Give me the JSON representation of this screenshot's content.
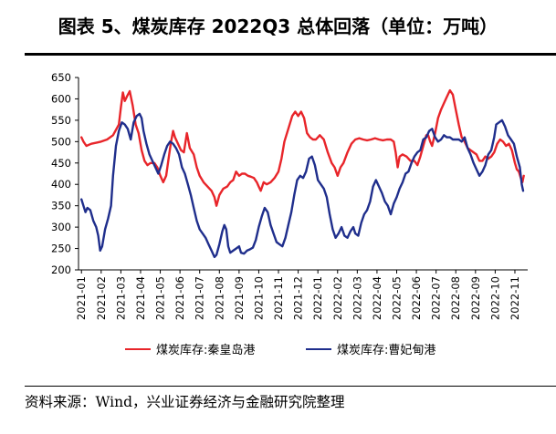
{
  "figure": {
    "title": "图表 5、煤炭库存 2022Q3 总体回落（单位：万吨）",
    "source": "资料来源：Wind，兴业证券经济与金融研究院整理"
  },
  "colors": {
    "series_qhd": "#e8252a",
    "series_cfd": "#1f2e8c",
    "axis": "#000000"
  },
  "chart_data": {
    "type": "line",
    "title": "煤炭库存 2022Q3 总体回落",
    "ylabel": "万吨",
    "xlabel": "",
    "ylim": [
      200,
      650
    ],
    "yticks": [
      200,
      250,
      300,
      350,
      400,
      450,
      500,
      550,
      600,
      650
    ],
    "xticks": [
      "2021-01",
      "2021-02",
      "2021-03",
      "2021-04",
      "2021-05",
      "2021-06",
      "2021-07",
      "2021-08",
      "2021-09",
      "2021-10",
      "2021-11",
      "2021-12",
      "2022-01",
      "2022-02",
      "2022-03",
      "2022-04",
      "2022-05",
      "2022-06",
      "2022-07",
      "2022-08",
      "2022-09",
      "2022-10",
      "2022-11"
    ],
    "x_index_unit": "month offset from 2021-01",
    "grid": false,
    "legend_position": "bottom",
    "series": [
      {
        "name": "煤炭库存:秦皇岛港",
        "points": [
          [
            0,
            510
          ],
          [
            0.1,
            500
          ],
          [
            0.25,
            490
          ],
          [
            0.5,
            495
          ],
          [
            0.8,
            498
          ],
          [
            1.0,
            500
          ],
          [
            1.3,
            505
          ],
          [
            1.6,
            515
          ],
          [
            1.9,
            540
          ],
          [
            2.0,
            580
          ],
          [
            2.1,
            615
          ],
          [
            2.2,
            595
          ],
          [
            2.3,
            605
          ],
          [
            2.45,
            618
          ],
          [
            2.6,
            585
          ],
          [
            2.75,
            540
          ],
          [
            2.9,
            520
          ],
          [
            3.05,
            480
          ],
          [
            3.2,
            455
          ],
          [
            3.35,
            445
          ],
          [
            3.5,
            450
          ],
          [
            3.7,
            450
          ],
          [
            3.85,
            440
          ],
          [
            4.0,
            420
          ],
          [
            4.15,
            405
          ],
          [
            4.3,
            420
          ],
          [
            4.45,
            470
          ],
          [
            4.55,
            500
          ],
          [
            4.65,
            525
          ],
          [
            4.75,
            510
          ],
          [
            4.9,
            495
          ],
          [
            5.05,
            480
          ],
          [
            5.2,
            475
          ],
          [
            5.35,
            520
          ],
          [
            5.5,
            485
          ],
          [
            5.7,
            470
          ],
          [
            5.85,
            440
          ],
          [
            6.0,
            420
          ],
          [
            6.2,
            405
          ],
          [
            6.4,
            395
          ],
          [
            6.6,
            385
          ],
          [
            6.75,
            370
          ],
          [
            6.85,
            350
          ],
          [
            7.0,
            375
          ],
          [
            7.2,
            390
          ],
          [
            7.4,
            395
          ],
          [
            7.55,
            405
          ],
          [
            7.7,
            410
          ],
          [
            7.85,
            430
          ],
          [
            8.0,
            420
          ],
          [
            8.15,
            425
          ],
          [
            8.3,
            425
          ],
          [
            8.45,
            420
          ],
          [
            8.6,
            418
          ],
          [
            8.75,
            415
          ],
          [
            8.9,
            405
          ],
          [
            9.0,
            395
          ],
          [
            9.1,
            385
          ],
          [
            9.25,
            405
          ],
          [
            9.4,
            400
          ],
          [
            9.6,
            405
          ],
          [
            9.8,
            415
          ],
          [
            10.0,
            430
          ],
          [
            10.15,
            460
          ],
          [
            10.3,
            500
          ],
          [
            10.5,
            530
          ],
          [
            10.7,
            560
          ],
          [
            10.85,
            570
          ],
          [
            11.0,
            560
          ],
          [
            11.15,
            570
          ],
          [
            11.3,
            555
          ],
          [
            11.45,
            520
          ],
          [
            11.6,
            510
          ],
          [
            11.75,
            505
          ],
          [
            11.9,
            505
          ],
          [
            12.1,
            515
          ],
          [
            12.3,
            505
          ],
          [
            12.5,
            475
          ],
          [
            12.7,
            450
          ],
          [
            12.85,
            440
          ],
          [
            13.0,
            420
          ],
          [
            13.15,
            440
          ],
          [
            13.3,
            450
          ],
          [
            13.5,
            475
          ],
          [
            13.7,
            495
          ],
          [
            13.9,
            505
          ],
          [
            14.1,
            508
          ],
          [
            14.3,
            505
          ],
          [
            14.5,
            503
          ],
          [
            14.7,
            505
          ],
          [
            14.9,
            508
          ],
          [
            15.1,
            505
          ],
          [
            15.3,
            503
          ],
          [
            15.5,
            505
          ],
          [
            15.7,
            505
          ],
          [
            15.85,
            500
          ],
          [
            15.95,
            475
          ],
          [
            16.05,
            440
          ],
          [
            16.15,
            465
          ],
          [
            16.3,
            470
          ],
          [
            16.5,
            465
          ],
          [
            16.7,
            455
          ],
          [
            16.9,
            455
          ],
          [
            17.05,
            445
          ],
          [
            17.2,
            465
          ],
          [
            17.35,
            490
          ],
          [
            17.5,
            515
          ],
          [
            17.6,
            515
          ],
          [
            17.7,
            500
          ],
          [
            17.8,
            490
          ],
          [
            17.95,
            520
          ],
          [
            18.1,
            555
          ],
          [
            18.25,
            575
          ],
          [
            18.4,
            590
          ],
          [
            18.55,
            605
          ],
          [
            18.7,
            620
          ],
          [
            18.85,
            610
          ],
          [
            19.0,
            575
          ],
          [
            19.15,
            540
          ],
          [
            19.3,
            510
          ],
          [
            19.45,
            500
          ],
          [
            19.6,
            485
          ],
          [
            19.75,
            480
          ],
          [
            19.9,
            475
          ],
          [
            20.05,
            470
          ],
          [
            20.2,
            455
          ],
          [
            20.35,
            455
          ],
          [
            20.5,
            465
          ],
          [
            20.65,
            460
          ],
          [
            20.8,
            465
          ],
          [
            20.95,
            475
          ],
          [
            21.1,
            495
          ],
          [
            21.25,
            505
          ],
          [
            21.4,
            500
          ],
          [
            21.55,
            490
          ],
          [
            21.7,
            495
          ],
          [
            21.85,
            480
          ],
          [
            22.0,
            450
          ],
          [
            22.1,
            435
          ],
          [
            22.2,
            430
          ],
          [
            22.3,
            415
          ],
          [
            22.38,
            405
          ],
          [
            22.45,
            420
          ]
        ]
      },
      {
        "name": "煤炭库存:曹妃甸港",
        "points": [
          [
            0,
            365
          ],
          [
            0.1,
            350
          ],
          [
            0.2,
            335
          ],
          [
            0.3,
            345
          ],
          [
            0.45,
            340
          ],
          [
            0.6,
            315
          ],
          [
            0.75,
            300
          ],
          [
            0.85,
            280
          ],
          [
            0.95,
            245
          ],
          [
            1.05,
            255
          ],
          [
            1.2,
            295
          ],
          [
            1.35,
            320
          ],
          [
            1.5,
            350
          ],
          [
            1.6,
            420
          ],
          [
            1.75,
            490
          ],
          [
            1.9,
            525
          ],
          [
            2.05,
            545
          ],
          [
            2.2,
            540
          ],
          [
            2.35,
            530
          ],
          [
            2.5,
            505
          ],
          [
            2.65,
            545
          ],
          [
            2.8,
            560
          ],
          [
            2.95,
            565
          ],
          [
            3.05,
            555
          ],
          [
            3.15,
            525
          ],
          [
            3.3,
            495
          ],
          [
            3.45,
            470
          ],
          [
            3.6,
            455
          ],
          [
            3.75,
            440
          ],
          [
            3.9,
            425
          ],
          [
            4.05,
            445
          ],
          [
            4.2,
            470
          ],
          [
            4.35,
            490
          ],
          [
            4.5,
            500
          ],
          [
            4.65,
            495
          ],
          [
            4.8,
            485
          ],
          [
            4.95,
            470
          ],
          [
            5.1,
            440
          ],
          [
            5.25,
            425
          ],
          [
            5.4,
            400
          ],
          [
            5.55,
            375
          ],
          [
            5.7,
            345
          ],
          [
            5.85,
            315
          ],
          [
            6.0,
            295
          ],
          [
            6.15,
            285
          ],
          [
            6.3,
            275
          ],
          [
            6.45,
            260
          ],
          [
            6.6,
            245
          ],
          [
            6.75,
            230
          ],
          [
            6.85,
            235
          ],
          [
            7.0,
            260
          ],
          [
            7.15,
            290
          ],
          [
            7.25,
            305
          ],
          [
            7.35,
            295
          ],
          [
            7.45,
            255
          ],
          [
            7.55,
            240
          ],
          [
            7.7,
            245
          ],
          [
            7.85,
            250
          ],
          [
            8.0,
            255
          ],
          [
            8.1,
            240
          ],
          [
            8.25,
            238
          ],
          [
            8.4,
            245
          ],
          [
            8.55,
            248
          ],
          [
            8.7,
            252
          ],
          [
            8.85,
            270
          ],
          [
            9.0,
            300
          ],
          [
            9.15,
            325
          ],
          [
            9.3,
            345
          ],
          [
            9.45,
            335
          ],
          [
            9.6,
            305
          ],
          [
            9.75,
            285
          ],
          [
            9.9,
            265
          ],
          [
            10.05,
            260
          ],
          [
            10.2,
            255
          ],
          [
            10.35,
            275
          ],
          [
            10.5,
            305
          ],
          [
            10.65,
            335
          ],
          [
            10.8,
            375
          ],
          [
            10.95,
            410
          ],
          [
            11.1,
            420
          ],
          [
            11.25,
            415
          ],
          [
            11.4,
            430
          ],
          [
            11.55,
            460
          ],
          [
            11.7,
            465
          ],
          [
            11.85,
            445
          ],
          [
            12.0,
            410
          ],
          [
            12.15,
            400
          ],
          [
            12.3,
            390
          ],
          [
            12.45,
            370
          ],
          [
            12.6,
            330
          ],
          [
            12.75,
            295
          ],
          [
            12.9,
            275
          ],
          [
            13.05,
            285
          ],
          [
            13.2,
            300
          ],
          [
            13.35,
            280
          ],
          [
            13.5,
            275
          ],
          [
            13.65,
            290
          ],
          [
            13.8,
            300
          ],
          [
            13.9,
            285
          ],
          [
            14.05,
            280
          ],
          [
            14.2,
            310
          ],
          [
            14.35,
            330
          ],
          [
            14.5,
            340
          ],
          [
            14.65,
            360
          ],
          [
            14.8,
            395
          ],
          [
            14.95,
            410
          ],
          [
            15.1,
            395
          ],
          [
            15.25,
            380
          ],
          [
            15.4,
            360
          ],
          [
            15.55,
            350
          ],
          [
            15.7,
            330
          ],
          [
            15.85,
            355
          ],
          [
            16.0,
            370
          ],
          [
            16.15,
            390
          ],
          [
            16.3,
            405
          ],
          [
            16.45,
            425
          ],
          [
            16.6,
            430
          ],
          [
            16.75,
            450
          ],
          [
            16.9,
            465
          ],
          [
            17.05,
            475
          ],
          [
            17.2,
            480
          ],
          [
            17.35,
            505
          ],
          [
            17.5,
            510
          ],
          [
            17.65,
            525
          ],
          [
            17.8,
            530
          ],
          [
            17.95,
            510
          ],
          [
            18.1,
            500
          ],
          [
            18.25,
            505
          ],
          [
            18.4,
            515
          ],
          [
            18.55,
            510
          ],
          [
            18.7,
            510
          ],
          [
            18.85,
            505
          ],
          [
            19.0,
            505
          ],
          [
            19.15,
            505
          ],
          [
            19.3,
            500
          ],
          [
            19.45,
            510
          ],
          [
            19.6,
            485
          ],
          [
            19.75,
            470
          ],
          [
            19.9,
            450
          ],
          [
            20.05,
            435
          ],
          [
            20.2,
            420
          ],
          [
            20.35,
            430
          ],
          [
            20.5,
            445
          ],
          [
            20.65,
            470
          ],
          [
            20.8,
            480
          ],
          [
            20.95,
            510
          ],
          [
            21.05,
            540
          ],
          [
            21.2,
            545
          ],
          [
            21.35,
            550
          ],
          [
            21.5,
            535
          ],
          [
            21.65,
            515
          ],
          [
            21.8,
            505
          ],
          [
            21.95,
            495
          ],
          [
            22.1,
            465
          ],
          [
            22.25,
            440
          ],
          [
            22.35,
            400
          ],
          [
            22.42,
            385
          ]
        ]
      }
    ]
  }
}
